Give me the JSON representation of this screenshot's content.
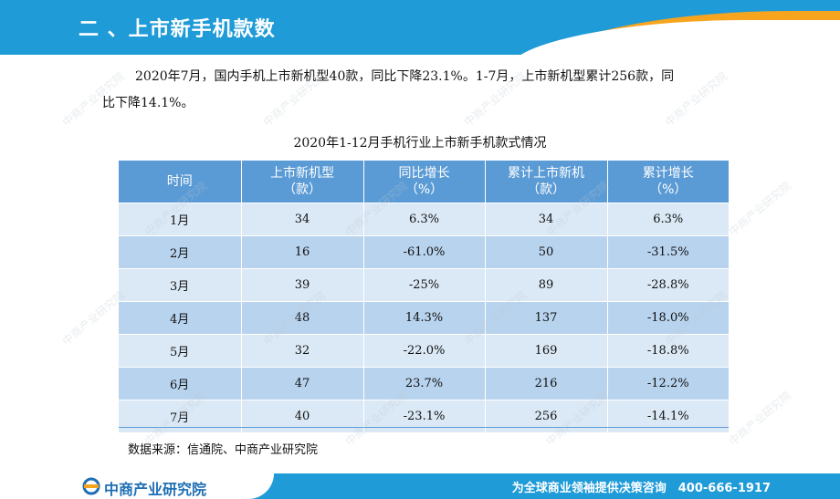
{
  "header": {
    "title": "二 、上市新手机款数"
  },
  "paragraph": {
    "line1": "2020年7月，国内手机上市新机型40款，同比下降23.1%。1-7月，上市新机型累计256款，同",
    "line2": "比下降14.1%。"
  },
  "table": {
    "title": "2020年1-12月手机行业上市新手机款式情况",
    "headers": [
      {
        "line1": "时间",
        "line2": ""
      },
      {
        "line1": "上市新机型",
        "line2": "（款）"
      },
      {
        "line1": "同比增长",
        "line2": "（%）"
      },
      {
        "line1": "累计上市新机",
        "line2": "（款）"
      },
      {
        "line1": "累计增长",
        "line2": "（%）"
      }
    ],
    "rows": [
      {
        "month": "1月",
        "models": "34",
        "yoy": "6.3%",
        "cumulative": "34",
        "cum_growth": "6.3%"
      },
      {
        "month": "2月",
        "models": "16",
        "yoy": "-61.0%",
        "cumulative": "50",
        "cum_growth": "-31.5%"
      },
      {
        "month": "3月",
        "models": "39",
        "yoy": "-25%",
        "cumulative": "89",
        "cum_growth": "-28.8%"
      },
      {
        "month": "4月",
        "models": "48",
        "yoy": "14.3%",
        "cumulative": "137",
        "cum_growth": "-18.0%"
      },
      {
        "month": "5月",
        "models": "32",
        "yoy": "-22.0%",
        "cumulative": "169",
        "cum_growth": "-18.8%"
      },
      {
        "month": "6月",
        "models": "47",
        "yoy": "23.7%",
        "cumulative": "216",
        "cum_growth": "-12.2%"
      },
      {
        "month": "7月",
        "models": "40",
        "yoy": "-23.1%",
        "cumulative": "256",
        "cum_growth": "-14.1%"
      }
    ]
  },
  "source": "数据来源：信通院、中商产业研究院",
  "footer": {
    "logo_text": "中商产业研究院",
    "slogan": "为全球商业领袖提供决策咨询　400-666-1917"
  },
  "watermark_text": "中商产业研究院",
  "colors": {
    "header_blue": "#1f9bd8",
    "accent_orange": "#f7a51e",
    "table_header": "#5b9bd5",
    "row_light": "#dbe9f6",
    "row_dark": "#b8d3ee"
  },
  "icons": {
    "logo": "zhongshang-logo-icon"
  }
}
